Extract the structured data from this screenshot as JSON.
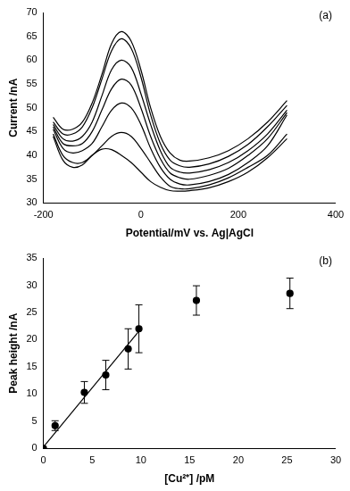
{
  "chart_data": [
    {
      "type": "line",
      "annotation": "(a)",
      "x_label": "Potential/mV vs. Ag|AgCl",
      "y_label": "Current /nA",
      "x": [
        -180,
        -160,
        -140,
        -120,
        -100,
        -80,
        -60,
        -40,
        -20,
        0,
        20,
        40,
        60,
        80,
        100,
        140,
        180,
        220,
        260,
        300
      ],
      "series": [
        {
          "color": "#000000",
          "values": [
            48,
            45.5,
            45.5,
            47,
            51,
            57,
            63.5,
            66,
            64,
            58,
            50,
            44,
            40.5,
            39,
            38.8,
            39.5,
            41,
            43.5,
            47,
            51.5
          ]
        },
        {
          "color": "#000000",
          "values": [
            47,
            44.5,
            44.5,
            46,
            50,
            56,
            62,
            64.5,
            62.5,
            56.5,
            48.5,
            42.5,
            39,
            37.8,
            37.5,
            38.2,
            39.8,
            42.3,
            46,
            50.5
          ]
        },
        {
          "color": "#000000",
          "values": [
            46.5,
            43.5,
            43,
            44,
            47,
            52.5,
            58,
            60,
            58.5,
            53,
            46.5,
            41,
            37.5,
            36.5,
            36.3,
            37,
            38.5,
            41,
            44.5,
            49.5
          ]
        },
        {
          "color": "#000000",
          "values": [
            46,
            42.5,
            42,
            42.5,
            45,
            49.5,
            54,
            56,
            54.8,
            50,
            44,
            39.3,
            36.3,
            35.3,
            35,
            35.8,
            37.3,
            40,
            43.5,
            49
          ]
        },
        {
          "color": "#000000",
          "values": [
            45.5,
            41.5,
            40.5,
            41,
            42.5,
            46,
            49.5,
            51,
            50,
            46.5,
            41.5,
            37.5,
            35,
            34,
            33.8,
            34.5,
            36,
            38.5,
            42,
            48.5
          ]
        },
        {
          "color": "#000000",
          "values": [
            44.5,
            40,
            38.5,
            38.5,
            40,
            42,
            44,
            44.8,
            44,
            41.5,
            38.5,
            35.5,
            33.5,
            33,
            33,
            33.8,
            35.3,
            37.5,
            40,
            44.5
          ]
        },
        {
          "color": "#000000",
          "values": [
            44,
            39,
            37.5,
            38,
            40,
            41.3,
            41.2,
            40,
            38.5,
            36.5,
            34.5,
            33.3,
            32.6,
            32.5,
            32.6,
            33.2,
            34.5,
            36.5,
            39.5,
            43.5
          ]
        }
      ],
      "xlim": [
        -200,
        400
      ],
      "xticks": [
        -200,
        0,
        200,
        400
      ],
      "ylim": [
        30,
        70
      ],
      "yticks": [
        30,
        35,
        40,
        45,
        50,
        55,
        60,
        65,
        70
      ],
      "grid": false
    },
    {
      "type": "scatter",
      "annotation": "(b)",
      "x_label": "[Cu²⁺] /pM",
      "y_label": "Peak height /nA",
      "series": [
        {
          "type": "scatter",
          "marker": "circle",
          "color": "#000000",
          "x": [
            0,
            1.2,
            4.2,
            6.4,
            8.7,
            9.8,
            15.7,
            25.3
          ],
          "values": [
            0,
            4.2,
            10.3,
            13.5,
            18.3,
            22,
            27.2,
            28.5
          ],
          "errors": [
            0,
            0.9,
            2,
            2.7,
            3.7,
            4.4,
            2.7,
            2.8
          ]
        },
        {
          "type": "line",
          "line_style": "solid",
          "color": "#000000",
          "x": [
            0,
            10
          ],
          "values": [
            0.3,
            22
          ]
        }
      ],
      "xlim": [
        0,
        30
      ],
      "xticks": [
        0,
        5,
        10,
        15,
        20,
        25,
        30
      ],
      "ylim": [
        0,
        35
      ],
      "yticks": [
        0,
        5,
        10,
        15,
        20,
        25,
        30,
        35
      ],
      "grid": false
    }
  ]
}
